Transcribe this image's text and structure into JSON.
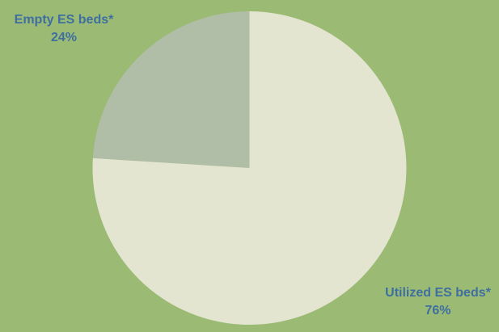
{
  "chart_data": {
    "type": "pie",
    "title": "",
    "slices": [
      {
        "label": "Empty ES beds*",
        "value": 24,
        "value_label": "24%",
        "color": "#b0bea8"
      },
      {
        "label": "Utilized ES beds*",
        "value": 76,
        "value_label": "76%",
        "color": "#e3e5d0"
      }
    ],
    "legend": "none",
    "background_color": "#9bbb74",
    "label_color": "#3f6ea0"
  }
}
